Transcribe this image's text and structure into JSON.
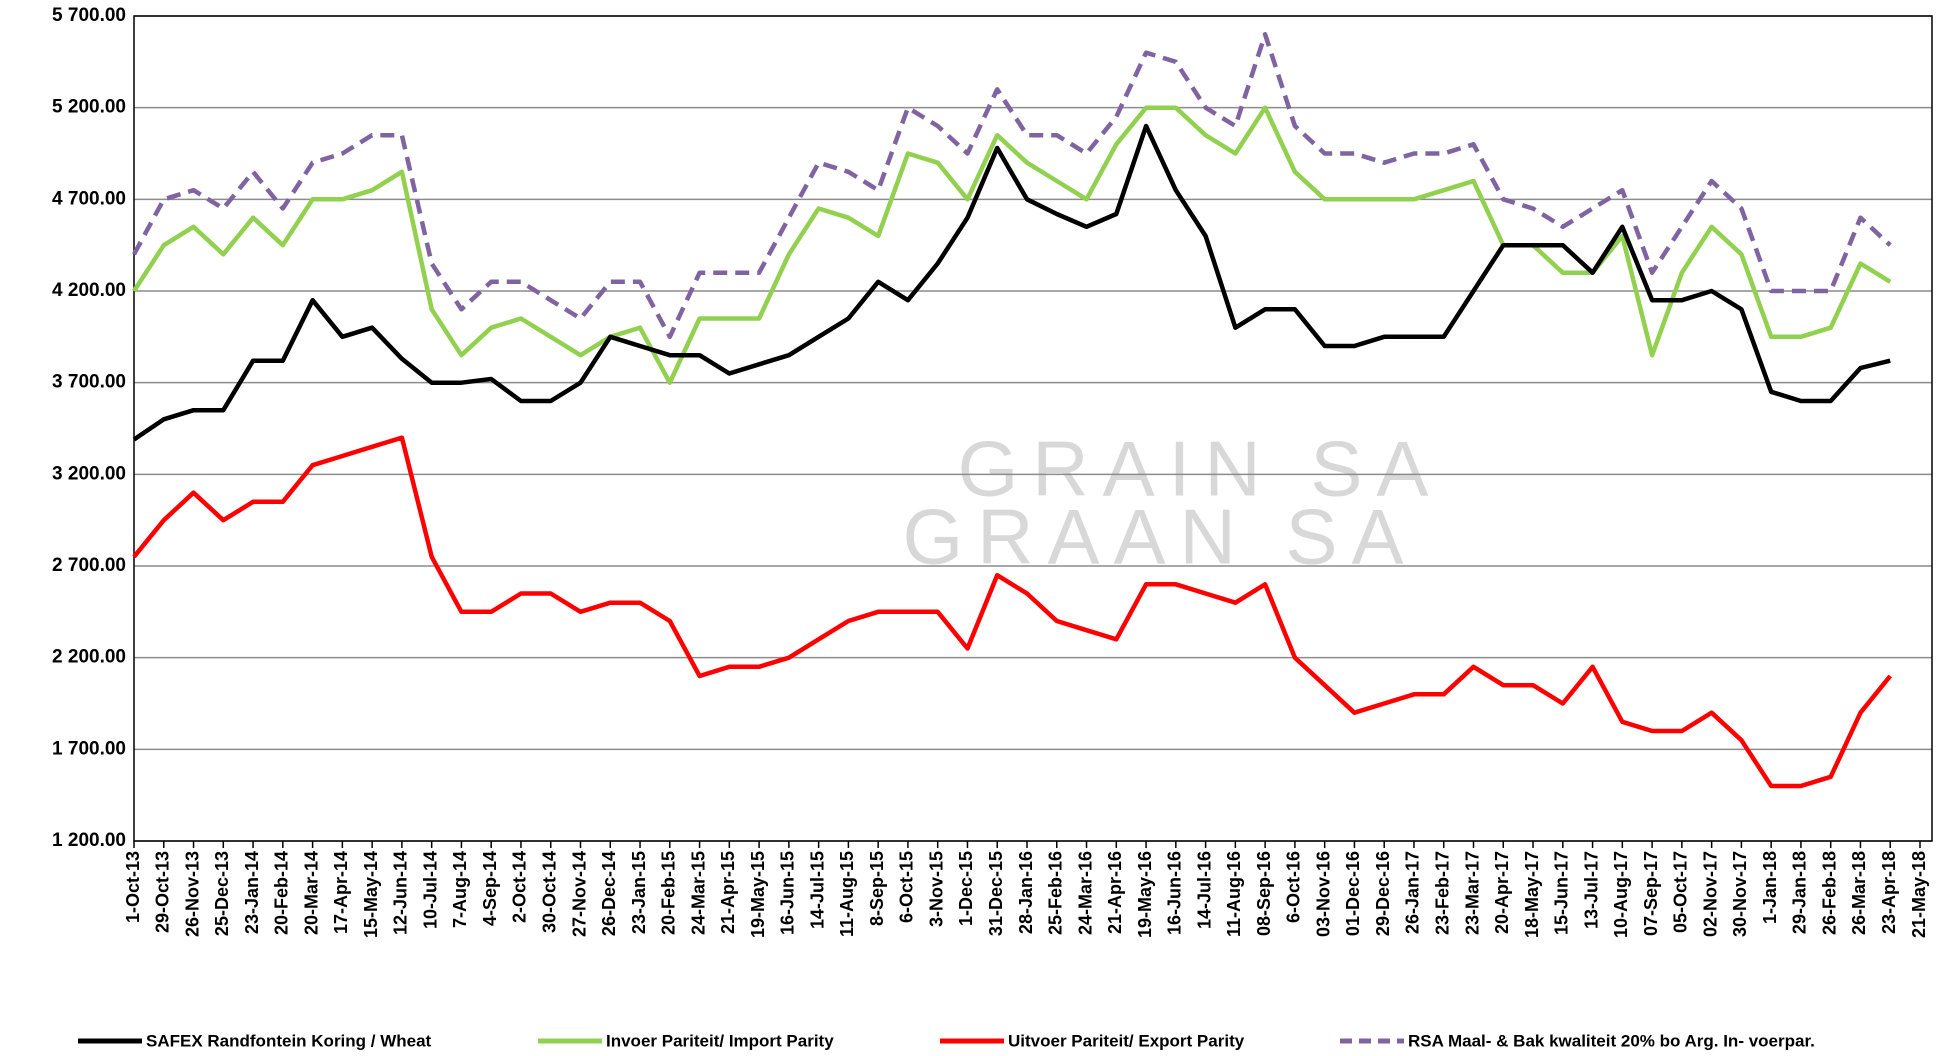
{
  "chart_data": {
    "type": "line",
    "watermark": [
      "GRAIN SA",
      "GRAAN SA"
    ],
    "categories": [
      "1-Oct-13",
      "29-Oct-13",
      "26-Nov-13",
      "25-Dec-13",
      "23-Jan-14",
      "20-Feb-14",
      "20-Mar-14",
      "17-Apr-14",
      "15-May-14",
      "12-Jun-14",
      "10-Jul-14",
      "7-Aug-14",
      "4-Sep-14",
      "2-Oct-14",
      "30-Oct-14",
      "27-Nov-14",
      "26-Dec-14",
      "23-Jan-15",
      "20-Feb-15",
      "24-Mar-15",
      "21-Apr-15",
      "19-May-15",
      "16-Jun-15",
      "14-Jul-15",
      "11-Aug-15",
      "8-Sep-15",
      "6-Oct-15",
      "3-Nov-15",
      "1-Dec-15",
      "31-Dec-15",
      "28-Jan-16",
      "25-Feb-16",
      "24-Mar-16",
      "21-Apr-16",
      "19-May-16",
      "16-Jun-16",
      "14-Jul-16",
      "11-Aug-16",
      "08-Sep-16",
      "6-Oct-16",
      "03-Nov-16",
      "01-Dec-16",
      "29-Dec-16",
      "26-Jan-17",
      "23-Feb-17",
      "23-Mar-17",
      "20-Apr-17",
      "18-May-17",
      "15-Jun-17",
      "13-Jul-17",
      "10-Aug-17",
      "07-Sep-17",
      "05-Oct-17",
      "02-Nov-17",
      "30-Nov-17",
      "1-Jan-18",
      "29-Jan-18",
      "26-Feb-18",
      "26-Mar-18",
      "23-Apr-18",
      "21-May-18"
    ],
    "series": [
      {
        "name": "SAFEX  Randfontein Koring / Wheat",
        "color": "#000000",
        "dash": false,
        "values": [
          3390,
          3500,
          3550,
          3550,
          3820,
          3820,
          4150,
          3950,
          4000,
          3830,
          3700,
          3700,
          3720,
          3600,
          3600,
          3700,
          3950,
          3900,
          3850,
          3850,
          3750,
          3800,
          3850,
          3950,
          4050,
          4250,
          4150,
          4350,
          4600,
          4980,
          4700,
          4620,
          4550,
          4620,
          5100,
          4750,
          4500,
          4000,
          4100,
          4100,
          3900,
          3900,
          3950,
          3950,
          3950,
          4200,
          4450,
          4450,
          4450,
          4300,
          4550,
          4150,
          4150,
          4200,
          4100,
          3650,
          3600,
          3600,
          3780,
          3820,
          null
        ]
      },
      {
        "name": "Invoer Pariteit/ Import Parity",
        "color": "#92d050",
        "dash": false,
        "values": [
          4200,
          4450,
          4550,
          4400,
          4600,
          4450,
          4700,
          4700,
          4750,
          4850,
          4100,
          3850,
          4000,
          4050,
          3950,
          3850,
          3950,
          4000,
          3700,
          4050,
          4050,
          4050,
          4400,
          4650,
          4600,
          4500,
          4950,
          4900,
          4700,
          5050,
          4900,
          4800,
          4700,
          5000,
          5200,
          5200,
          5050,
          4950,
          5200,
          4850,
          4700,
          4700,
          4700,
          4700,
          4750,
          4800,
          4450,
          4450,
          4300,
          4300,
          4500,
          3850,
          4300,
          4550,
          4400,
          3950,
          3950,
          4000,
          4350,
          4250,
          null
        ]
      },
      {
        "name": "Uitvoer Pariteit/ Export Parity",
        "color": "#ff0000",
        "dash": false,
        "values": [
          2750,
          2950,
          3100,
          2950,
          3050,
          3050,
          3250,
          3300,
          3350,
          3400,
          2750,
          2450,
          2450,
          2550,
          2550,
          2450,
          2500,
          2500,
          2400,
          2100,
          2150,
          2150,
          2200,
          2300,
          2400,
          2450,
          2450,
          2450,
          2250,
          2650,
          2550,
          2400,
          2350,
          2300,
          2600,
          2600,
          2550,
          2500,
          2600,
          2200,
          2050,
          1900,
          1950,
          2000,
          2000,
          2150,
          2050,
          2050,
          1950,
          2150,
          1850,
          1800,
          1800,
          1900,
          1750,
          1500,
          1500,
          1550,
          1900,
          2100,
          null
        ]
      },
      {
        "name": "RSA Maal- & Bak kwaliteit 20% bo  Arg. In- voerpar.",
        "color": "#8064a2",
        "dash": true,
        "values": [
          4400,
          4700,
          4750,
          4650,
          4850,
          4650,
          4900,
          4950,
          5050,
          5050,
          4350,
          4100,
          4250,
          4250,
          4150,
          4050,
          4250,
          4250,
          3950,
          4300,
          4300,
          4300,
          4600,
          4900,
          4850,
          4750,
          5200,
          5100,
          4950,
          5300,
          5050,
          5050,
          4950,
          5150,
          5500,
          5450,
          5200,
          5100,
          5600,
          5100,
          4950,
          4950,
          4900,
          4950,
          4950,
          5000,
          4700,
          4650,
          4550,
          4650,
          4750,
          4300,
          4550,
          4800,
          4650,
          4200,
          4200,
          4200,
          4600,
          4450,
          null
        ]
      }
    ],
    "ylim": [
      1200,
      5700
    ],
    "yticks": [
      {
        "value": 1200,
        "label": "1 200.00"
      },
      {
        "value": 1700,
        "label": "1 700.00"
      },
      {
        "value": 2200,
        "label": "2 200.00"
      },
      {
        "value": 2700,
        "label": "2 700.00"
      },
      {
        "value": 3200,
        "label": "3 200.00"
      },
      {
        "value": 3700,
        "label": "3 700.00"
      },
      {
        "value": 4200,
        "label": "4 200.00"
      },
      {
        "value": 4700,
        "label": "4 700.00"
      },
      {
        "value": 5200,
        "label": "5 200.00"
      },
      {
        "value": 5700,
        "label": "5 700.00"
      }
    ],
    "grid": true,
    "legend": "bottom"
  }
}
